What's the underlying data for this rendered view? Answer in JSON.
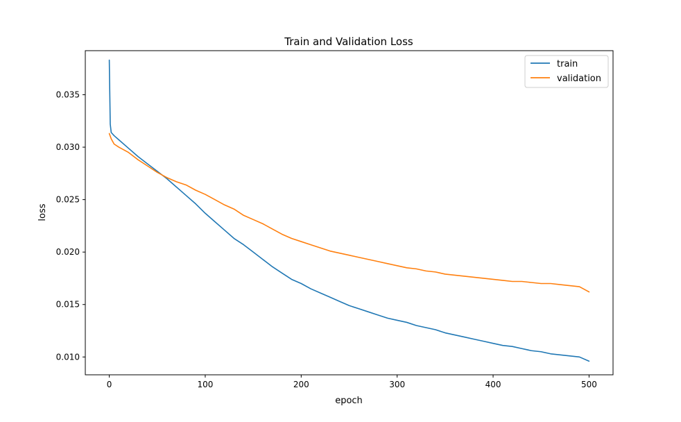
{
  "chart_data": {
    "type": "line",
    "title": "Train and Validation Loss",
    "xlabel": "epoch",
    "ylabel": "loss",
    "xlim": [
      -25,
      525
    ],
    "ylim": [
      0.0083,
      0.0392
    ],
    "grid": false,
    "legend_position": "top-right",
    "x_ticks": [
      0,
      100,
      200,
      300,
      400,
      500
    ],
    "x_tick_labels": [
      "0",
      "100",
      "200",
      "300",
      "400",
      "500"
    ],
    "y_ticks": [
      0.01,
      0.015,
      0.02,
      0.025,
      0.03,
      0.035
    ],
    "y_tick_labels": [
      "0.010",
      "0.015",
      "0.020",
      "0.025",
      "0.030",
      "0.035"
    ],
    "series": [
      {
        "name": "train",
        "color": "#1f77b4",
        "x": [
          0,
          1,
          2,
          5,
          10,
          20,
          30,
          40,
          50,
          60,
          70,
          80,
          90,
          100,
          110,
          120,
          130,
          140,
          150,
          160,
          170,
          180,
          190,
          200,
          210,
          220,
          230,
          240,
          250,
          260,
          270,
          280,
          290,
          300,
          310,
          320,
          330,
          340,
          350,
          360,
          370,
          380,
          390,
          400,
          410,
          420,
          430,
          440,
          450,
          460,
          470,
          480,
          490,
          500
        ],
        "values": [
          0.0383,
          0.0322,
          0.0314,
          0.0311,
          0.0307,
          0.0299,
          0.0291,
          0.0284,
          0.0277,
          0.027,
          0.0262,
          0.0254,
          0.0246,
          0.0237,
          0.0229,
          0.0221,
          0.0213,
          0.0207,
          0.02,
          0.0193,
          0.0186,
          0.018,
          0.0174,
          0.017,
          0.0165,
          0.0161,
          0.0157,
          0.0153,
          0.0149,
          0.0146,
          0.0143,
          0.014,
          0.0137,
          0.0135,
          0.0133,
          0.013,
          0.0128,
          0.0126,
          0.0123,
          0.0121,
          0.0119,
          0.0117,
          0.0115,
          0.0113,
          0.0111,
          0.011,
          0.0108,
          0.0106,
          0.0105,
          0.0103,
          0.0102,
          0.0101,
          0.01,
          0.0096
        ]
      },
      {
        "name": "validation",
        "color": "#ff7f0e",
        "x": [
          0,
          2,
          5,
          10,
          20,
          30,
          40,
          50,
          60,
          70,
          80,
          90,
          100,
          110,
          120,
          130,
          140,
          150,
          160,
          170,
          180,
          190,
          200,
          210,
          220,
          230,
          240,
          250,
          260,
          270,
          280,
          290,
          300,
          310,
          320,
          330,
          340,
          350,
          360,
          370,
          380,
          390,
          400,
          410,
          420,
          430,
          440,
          450,
          460,
          470,
          480,
          490,
          500
        ],
        "values": [
          0.0313,
          0.0308,
          0.0303,
          0.03,
          0.0295,
          0.0288,
          0.0282,
          0.0276,
          0.0271,
          0.0267,
          0.0264,
          0.0259,
          0.0255,
          0.025,
          0.0245,
          0.0241,
          0.0235,
          0.0231,
          0.0227,
          0.0222,
          0.0217,
          0.0213,
          0.021,
          0.0207,
          0.0204,
          0.0201,
          0.0199,
          0.0197,
          0.0195,
          0.0193,
          0.0191,
          0.0189,
          0.0187,
          0.0185,
          0.0184,
          0.0182,
          0.0181,
          0.0179,
          0.0178,
          0.0177,
          0.0176,
          0.0175,
          0.0174,
          0.0173,
          0.0172,
          0.0172,
          0.0171,
          0.017,
          0.017,
          0.0169,
          0.0168,
          0.0167,
          0.0162
        ]
      }
    ]
  }
}
